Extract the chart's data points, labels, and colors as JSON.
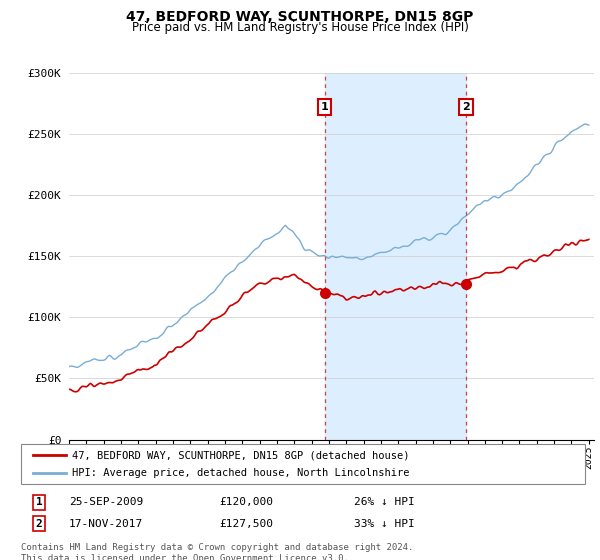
{
  "title": "47, BEDFORD WAY, SCUNTHORPE, DN15 8GP",
  "subtitle": "Price paid vs. HM Land Registry's House Price Index (HPI)",
  "ylim": [
    0,
    300000
  ],
  "yticks": [
    0,
    50000,
    100000,
    150000,
    200000,
    250000,
    300000
  ],
  "ytick_labels": [
    "£0",
    "£50K",
    "£100K",
    "£150K",
    "£200K",
    "£250K",
    "£300K"
  ],
  "transaction1_date": "25-SEP-2009",
  "transaction1_price": 120000,
  "transaction1_pct": "26%",
  "transaction2_date": "17-NOV-2017",
  "transaction2_price": 127500,
  "transaction2_pct": "33%",
  "legend_property": "47, BEDFORD WAY, SCUNTHORPE, DN15 8GP (detached house)",
  "legend_hpi": "HPI: Average price, detached house, North Lincolnshire",
  "footer": "Contains HM Land Registry data © Crown copyright and database right 2024.\nThis data is licensed under the Open Government Licence v3.0.",
  "property_color": "#cc0000",
  "hpi_color": "#7aadd4",
  "shade_color": "#ddeeff",
  "vline_color": "#cc4444",
  "background_color": "#ffffff"
}
